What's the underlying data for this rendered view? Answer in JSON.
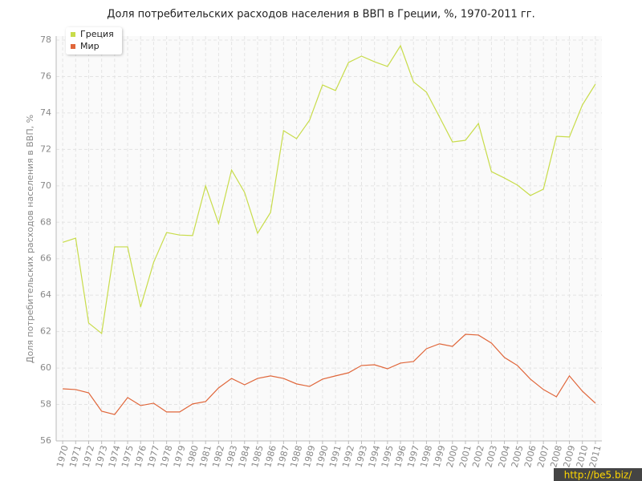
{
  "chart_data": {
    "type": "line",
    "title": "Доля потребительских расходов населения в ВВП в Греции, %, 1970-2011 гг.",
    "y_label": "Доля потребительских расходов населения в ВВП, %",
    "watermark": "http://be5.biz/",
    "categories": [
      "1970",
      "1971",
      "1972",
      "1973",
      "1974",
      "1975",
      "1976",
      "1977",
      "1978",
      "1979",
      "1980",
      "1981",
      "1982",
      "1983",
      "1984",
      "1985",
      "1986",
      "1987",
      "1988",
      "1989",
      "1990",
      "1991",
      "1992",
      "1993",
      "1994",
      "1995",
      "1996",
      "1997",
      "1998",
      "1999",
      "2000",
      "2001",
      "2002",
      "2003",
      "2004",
      "2005",
      "2006",
      "2007",
      "2008",
      "2009",
      "2010",
      "2011"
    ],
    "series": [
      {
        "name": "Греция",
        "color": "#c8dc4a",
        "values": [
          66.9,
          67.13,
          62.47,
          61.9,
          66.65,
          66.65,
          63.35,
          65.8,
          67.44,
          67.3,
          67.27,
          70.0,
          67.93,
          70.87,
          69.64,
          67.4,
          68.54,
          73.03,
          72.59,
          73.6,
          75.54,
          75.23,
          76.77,
          77.12,
          76.81,
          76.55,
          77.69,
          75.71,
          75.14,
          73.78,
          72.41,
          72.5,
          73.42,
          70.78,
          70.43,
          70.04,
          69.47,
          69.82,
          72.72,
          72.68,
          74.44,
          75.58
        ]
      },
      {
        "name": "Мир",
        "color": "#e0663a",
        "values": [
          58.86,
          58.82,
          58.64,
          57.63,
          57.45,
          58.38,
          57.94,
          58.07,
          57.59,
          57.59,
          58.03,
          58.16,
          58.91,
          59.43,
          59.08,
          59.43,
          59.57,
          59.43,
          59.13,
          58.99,
          59.39,
          59.57,
          59.74,
          60.14,
          60.18,
          59.96,
          60.27,
          60.36,
          61.06,
          61.33,
          61.19,
          61.85,
          61.81,
          61.37,
          60.58,
          60.14,
          59.39,
          58.82,
          58.42,
          59.57,
          58.73,
          58.07
        ]
      }
    ],
    "ylim": [
      56,
      78
    ],
    "yticks": [
      56,
      58,
      60,
      62,
      64,
      66,
      68,
      70,
      72,
      74,
      76,
      78
    ],
    "grid": true,
    "legend": "top-left"
  }
}
